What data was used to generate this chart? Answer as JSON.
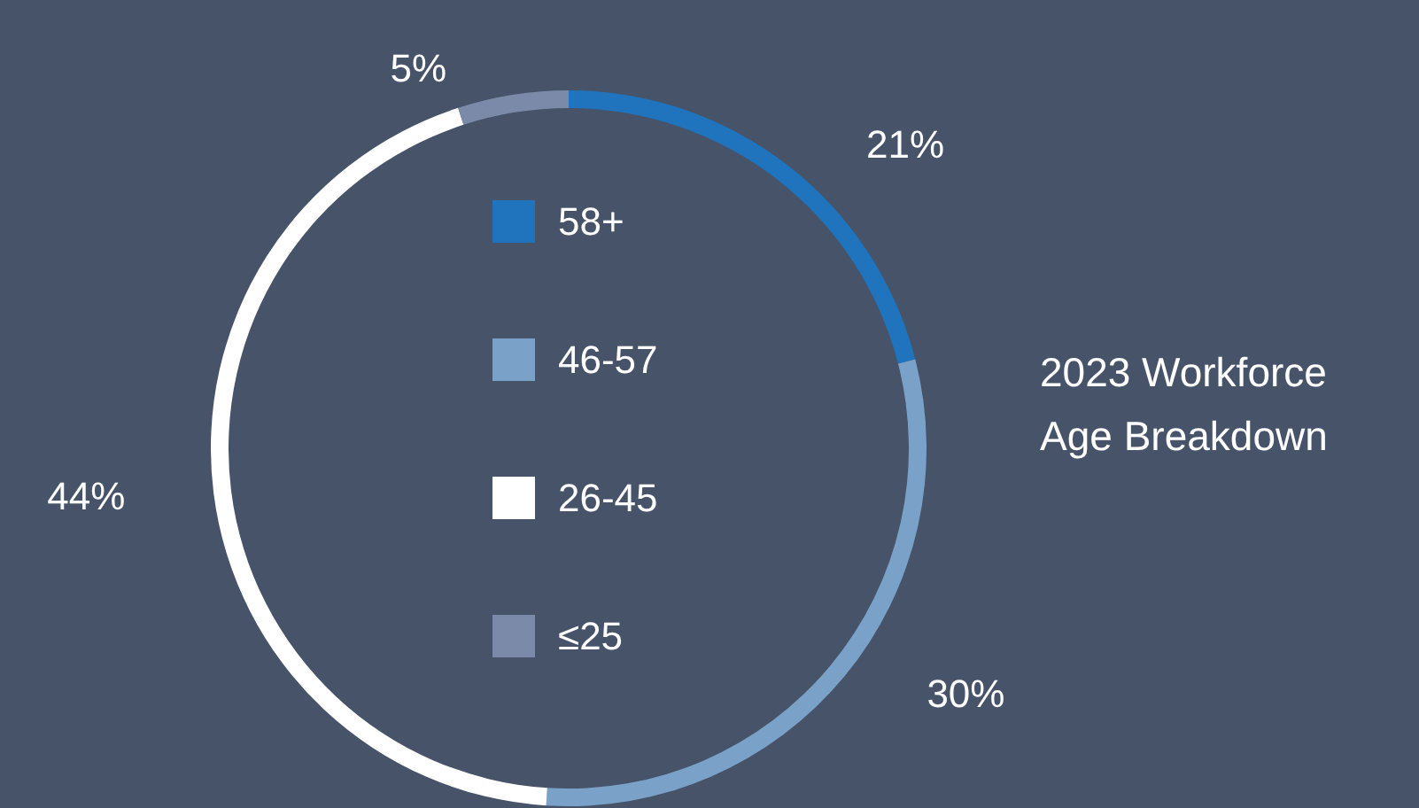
{
  "chart_data": {
    "type": "donut",
    "title": "2023 Workforce Age Breakdown",
    "categories": [
      "58+",
      "46-57",
      "26-45",
      "≤25"
    ],
    "values": [
      21,
      30,
      44,
      5
    ],
    "colors": [
      "#1f74bd",
      "#7aa2c8",
      "#ffffff",
      "#7a8aa8"
    ],
    "value_labels": [
      "21%",
      "30%",
      "44%",
      "5%"
    ],
    "legend": "center"
  }
}
